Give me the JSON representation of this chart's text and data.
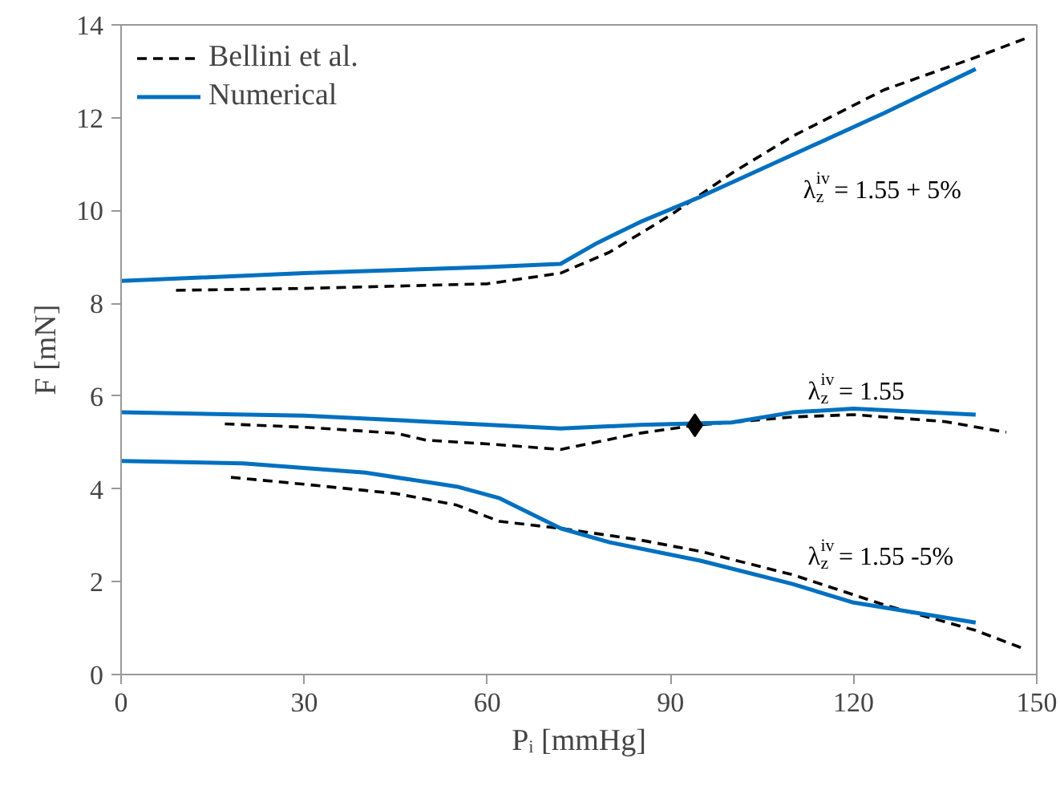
{
  "chart_data": {
    "type": "line",
    "xlabel": "Pᵢ [mmHg]",
    "ylabel": "F [mN]",
    "xlim": [
      0,
      150
    ],
    "xticks": [
      0,
      30,
      60,
      90,
      120,
      150
    ],
    "ylim": [
      0,
      14
    ],
    "yticks": [
      0,
      2,
      4,
      6,
      8,
      10,
      12,
      14
    ],
    "grid": false,
    "legend": "top left",
    "series": [
      {
        "name": "Bellini et al.",
        "color": "#000000",
        "line_style": "dashed",
        "x": [
          9,
          30,
          60,
          72,
          80,
          90,
          100,
          110,
          125,
          140,
          148
        ],
        "values": [
          8.28,
          8.32,
          8.42,
          8.65,
          9.1,
          9.9,
          10.8,
          11.6,
          12.6,
          13.3,
          13.7
        ]
      },
      {
        "name": "Numerical",
        "color": "#0070c0",
        "line_style": "solid",
        "x": [
          0,
          30,
          60,
          72,
          78,
          85,
          95,
          110,
          125,
          140
        ],
        "values": [
          8.48,
          8.65,
          8.78,
          8.85,
          9.3,
          9.75,
          10.3,
          11.2,
          12.1,
          13.05
        ]
      },
      {
        "color": "#000000",
        "line_style": "dashed",
        "x": [
          17,
          30,
          45,
          50,
          60,
          72,
          85,
          94,
          110,
          120,
          135,
          145
        ],
        "values": [
          5.4,
          5.33,
          5.2,
          5.05,
          4.97,
          4.85,
          5.2,
          5.37,
          5.55,
          5.6,
          5.45,
          5.22
        ]
      },
      {
        "color": "#0070c0",
        "line_style": "solid",
        "x": [
          0,
          30,
          50,
          72,
          85,
          100,
          110,
          120,
          140
        ],
        "values": [
          5.65,
          5.58,
          5.45,
          5.3,
          5.38,
          5.43,
          5.65,
          5.73,
          5.6
        ]
      },
      {
        "color": "#000000",
        "line_style": "dashed",
        "x": [
          18,
          30,
          45,
          55,
          62,
          72,
          85,
          95,
          110,
          125,
          140,
          148
        ],
        "values": [
          4.25,
          4.1,
          3.9,
          3.65,
          3.3,
          3.15,
          2.9,
          2.65,
          2.15,
          1.5,
          0.95,
          0.55
        ]
      },
      {
        "color": "#0070c0",
        "line_style": "solid",
        "x": [
          0,
          20,
          40,
          55,
          62,
          72,
          80,
          95,
          110,
          120,
          140
        ],
        "values": [
          4.6,
          4.55,
          4.35,
          4.05,
          3.8,
          3.15,
          2.85,
          2.45,
          1.95,
          1.55,
          1.12
        ]
      },
      {
        "type": "scatter",
        "marker": "diamond",
        "color": "#000000",
        "x": [
          94
        ],
        "values": [
          5.37
        ]
      }
    ],
    "annotations": [
      "λ$_{z}$$^{iv}$ = 1.55 + 5%",
      "λ$_{z}$$^{iv}$ = 1.55",
      "λ$_{z}$$^{iv}$ = 1.55 -5%"
    ]
  }
}
